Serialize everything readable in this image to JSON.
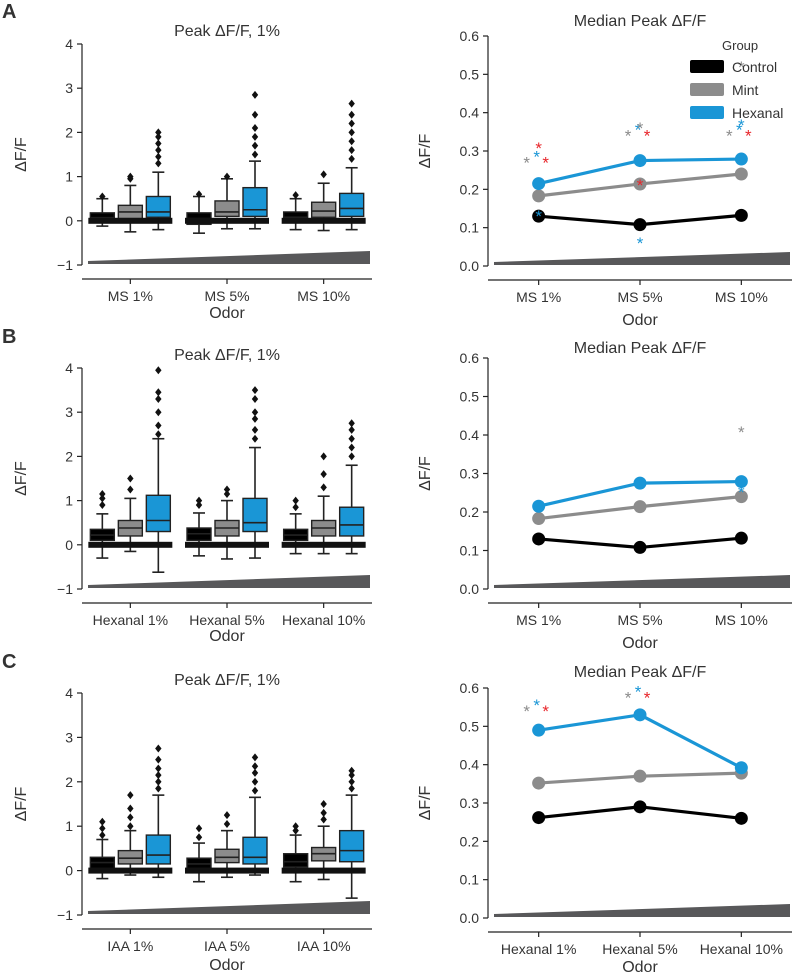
{
  "colors": {
    "control": "#000000",
    "mint": "#8c8c8c",
    "hexanal": "#1a96d6",
    "sig_red": "#e8262b",
    "ramp": "#58585a",
    "axis": "#222222"
  },
  "legend": {
    "title": "Group",
    "entries": [
      "Control",
      "Mint",
      "Hexanal"
    ]
  },
  "panels": [
    {
      "label": "A",
      "box_title": "Peak ΔF/F, 1%",
      "box_ylabel": "ΔF/F",
      "box_xlabel": "Odor",
      "line_title": "Median Peak ΔF/F",
      "line_ylabel": "ΔF/F",
      "line_xlabel": "Odor"
    },
    {
      "label": "B",
      "box_title": "Peak ΔF/F, 1%",
      "box_ylabel": "ΔF/F",
      "box_xlabel": "Odor",
      "line_title": "Median Peak ΔF/F",
      "line_ylabel": "ΔF/F",
      "line_xlabel": "Odor"
    },
    {
      "label": "C",
      "box_title": "Peak ΔF/F, 1%",
      "box_ylabel": "ΔF/F",
      "box_xlabel": "Odor",
      "line_title": "Median Peak ΔF/F",
      "line_ylabel": "ΔF/F",
      "line_xlabel": "Odor"
    }
  ],
  "chart_data": [
    {
      "id": "A-box",
      "type": "box",
      "title": "Peak ΔF/F, 1%",
      "xlabel": "Odor",
      "ylabel": "ΔF/F",
      "ylim": [
        -1,
        4
      ],
      "yticks": [
        -1,
        0,
        1,
        2,
        3,
        4
      ],
      "categories": [
        "MS 1%",
        "MS 5%",
        "MS 10%"
      ],
      "series": [
        {
          "name": "Control",
          "boxes": [
            {
              "q1": 0.02,
              "median": 0.07,
              "q3": 0.18,
              "wlo": -0.12,
              "whi": 0.5,
              "outliers": [
                0.55
              ]
            },
            {
              "q1": -0.08,
              "median": 0.05,
              "q3": 0.18,
              "wlo": -0.28,
              "whi": 0.55,
              "outliers": [
                0.6
              ]
            },
            {
              "q1": 0.0,
              "median": 0.08,
              "q3": 0.2,
              "wlo": -0.2,
              "whi": 0.5,
              "outliers": [
                0.58
              ]
            }
          ]
        },
        {
          "name": "Mint",
          "boxes": [
            {
              "q1": 0.05,
              "median": 0.2,
              "q3": 0.35,
              "wlo": -0.25,
              "whi": 0.8,
              "outliers": [
                1.0,
                0.95
              ]
            },
            {
              "q1": 0.1,
              "median": 0.2,
              "q3": 0.45,
              "wlo": -0.18,
              "whi": 0.95,
              "outliers": [
                1.0
              ]
            },
            {
              "q1": 0.08,
              "median": 0.22,
              "q3": 0.42,
              "wlo": -0.22,
              "whi": 0.85,
              "outliers": [
                1.05
              ]
            }
          ]
        },
        {
          "name": "Hexanal",
          "boxes": [
            {
              "q1": 0.08,
              "median": 0.2,
              "q3": 0.55,
              "wlo": -0.2,
              "whi": 1.1,
              "outliers": [
                1.3,
                1.45,
                1.6,
                1.75,
                1.9,
                2.0
              ]
            },
            {
              "q1": 0.1,
              "median": 0.25,
              "q3": 0.75,
              "wlo": -0.18,
              "whi": 1.35,
              "outliers": [
                1.5,
                1.7,
                1.9,
                2.1,
                2.4,
                2.85
              ]
            },
            {
              "q1": 0.1,
              "median": 0.28,
              "q3": 0.62,
              "wlo": -0.2,
              "whi": 1.2,
              "outliers": [
                1.4,
                1.6,
                1.8,
                2.0,
                2.2,
                2.4,
                2.65
              ]
            }
          ]
        }
      ]
    },
    {
      "id": "A-line",
      "type": "line",
      "title": "Median Peak ΔF/F",
      "xlabel": "Odor",
      "ylabel": "ΔF/F",
      "ylim": [
        0,
        0.6
      ],
      "yticks": [
        0.0,
        0.1,
        0.2,
        0.3,
        0.4,
        0.5,
        0.6
      ],
      "categories": [
        "MS 1%",
        "MS 5%",
        "MS 10%"
      ],
      "series": [
        {
          "name": "Control",
          "values": [
            0.13,
            0.108,
            0.132
          ]
        },
        {
          "name": "Mint",
          "values": [
            0.183,
            0.214,
            0.24
          ]
        },
        {
          "name": "Hexanal",
          "values": [
            0.215,
            0.275,
            0.279
          ]
        }
      ],
      "significance": [
        {
          "x": 0,
          "y": 0.27,
          "marks": [
            [
              "Mint",
              -12,
              6
            ],
            [
              "Hexanal",
              -2,
              0
            ],
            [
              "red",
              7,
              6
            ]
          ]
        },
        {
          "x": 1,
          "y": 0.34,
          "marks": [
            [
              "Mint",
              -12,
              6
            ],
            [
              "Hexanal",
              -2,
              0
            ],
            [
              "red",
              7,
              6
            ]
          ]
        },
        {
          "x": 2,
          "y": 0.34,
          "marks": [
            [
              "Mint",
              -12,
              6
            ],
            [
              "Hexanal",
              -2,
              0
            ],
            [
              "red",
              7,
              6
            ]
          ]
        }
      ]
    },
    {
      "id": "B-box",
      "type": "box",
      "title": "Peak ΔF/F, 1%",
      "xlabel": "Odor",
      "ylabel": "ΔF/F",
      "ylim": [
        -1,
        4
      ],
      "yticks": [
        -1,
        0,
        1,
        2,
        3,
        4
      ],
      "categories": [
        "Hexanal 1%",
        "Hexanal 5%",
        "Hexanal 10%"
      ],
      "series": [
        {
          "name": "Control",
          "boxes": [
            {
              "q1": 0.1,
              "median": 0.22,
              "q3": 0.35,
              "wlo": -0.3,
              "whi": 0.7,
              "outliers": [
                0.9,
                1.05,
                1.15
              ]
            },
            {
              "q1": 0.1,
              "median": 0.25,
              "q3": 0.38,
              "wlo": -0.25,
              "whi": 0.72,
              "outliers": [
                0.9,
                1.0
              ]
            },
            {
              "q1": 0.1,
              "median": 0.22,
              "q3": 0.35,
              "wlo": -0.2,
              "whi": 0.7,
              "outliers": [
                0.85,
                1.0
              ]
            }
          ]
        },
        {
          "name": "Mint",
          "boxes": [
            {
              "q1": 0.2,
              "median": 0.38,
              "q3": 0.55,
              "wlo": -0.15,
              "whi": 1.05,
              "outliers": [
                1.25,
                1.5
              ]
            },
            {
              "q1": 0.2,
              "median": 0.38,
              "q3": 0.55,
              "wlo": -0.32,
              "whi": 1.0,
              "outliers": [
                1.15,
                1.25
              ]
            },
            {
              "q1": 0.2,
              "median": 0.38,
              "q3": 0.55,
              "wlo": -0.2,
              "whi": 1.1,
              "outliers": [
                1.3,
                1.6,
                2.0
              ]
            }
          ]
        },
        {
          "name": "Hexanal",
          "boxes": [
            {
              "q1": 0.3,
              "median": 0.55,
              "q3": 1.12,
              "wlo": -0.62,
              "whi": 2.4,
              "outliers": [
                2.5,
                2.7,
                3.0,
                3.3,
                3.45,
                3.95
              ]
            },
            {
              "q1": 0.3,
              "median": 0.5,
              "q3": 1.05,
              "wlo": -0.3,
              "whi": 2.2,
              "outliers": [
                2.4,
                2.6,
                2.85,
                3.0,
                3.3,
                3.5
              ]
            },
            {
              "q1": 0.2,
              "median": 0.45,
              "q3": 0.85,
              "wlo": -0.2,
              "whi": 1.8,
              "outliers": [
                2.0,
                2.2,
                2.4,
                2.6,
                2.75
              ]
            }
          ]
        }
      ]
    },
    {
      "id": "B-line",
      "type": "line",
      "title": "Median Peak ΔF/F",
      "xlabel": "Odor",
      "ylabel": "ΔF/F",
      "ylim": [
        0,
        0.6
      ],
      "yticks": [
        0.0,
        0.1,
        0.2,
        0.3,
        0.4,
        0.5,
        0.6
      ],
      "categories": [
        "MS 1%",
        "MS 5%",
        "MS 10%"
      ],
      "series": [
        {
          "name": "Control",
          "values": [
            0.13,
            0.108,
            0.132
          ]
        },
        {
          "name": "Mint",
          "values": [
            0.183,
            0.214,
            0.24
          ]
        },
        {
          "name": "Hexanal",
          "values": [
            0.215,
            0.275,
            0.279
          ]
        }
      ],
      "significance": [
        {
          "x": 0,
          "y": 0.0,
          "marks": [
            [
              "red",
              0,
              -435
            ],
            [
              "Hexanal",
              0,
              -367
            ]
          ]
        },
        {
          "x": 1,
          "y": 0.0,
          "marks": [
            [
              "Mint",
              0,
              -455
            ],
            [
              "red",
              0,
              -398
            ],
            [
              "Hexanal",
              0,
              -340
            ]
          ]
        },
        {
          "x": 2,
          "y": 0.0,
          "marks": [
            [
              "Mint",
              0,
              -516
            ],
            [
              "Hexanal",
              0,
              -458
            ]
          ]
        }
      ]
    },
    {
      "id": "C-box",
      "type": "box",
      "title": "Peak ΔF/F, 1%",
      "xlabel": "Odor",
      "ylabel": "ΔF/F",
      "ylim": [
        -1,
        4
      ],
      "yticks": [
        -1,
        0,
        1,
        2,
        3,
        4
      ],
      "categories": [
        "IAA 1%",
        "IAA 5%",
        "IAA 10%"
      ],
      "series": [
        {
          "name": "Control",
          "boxes": [
            {
              "q1": 0.05,
              "median": 0.18,
              "q3": 0.3,
              "wlo": -0.18,
              "whi": 0.7,
              "outliers": [
                0.8,
                0.95,
                1.1
              ]
            },
            {
              "q1": 0.05,
              "median": 0.15,
              "q3": 0.28,
              "wlo": -0.25,
              "whi": 0.62,
              "outliers": [
                0.75,
                0.95
              ]
            },
            {
              "q1": 0.08,
              "median": 0.2,
              "q3": 0.38,
              "wlo": -0.25,
              "whi": 0.8,
              "outliers": [
                0.9,
                1.0
              ]
            }
          ]
        },
        {
          "name": "Mint",
          "boxes": [
            {
              "q1": 0.15,
              "median": 0.28,
              "q3": 0.45,
              "wlo": -0.1,
              "whi": 0.9,
              "outliers": [
                1.0,
                1.2,
                1.4,
                1.7
              ]
            },
            {
              "q1": 0.18,
              "median": 0.3,
              "q3": 0.48,
              "wlo": -0.15,
              "whi": 0.9,
              "outliers": [
                1.05,
                1.25
              ]
            },
            {
              "q1": 0.22,
              "median": 0.38,
              "q3": 0.52,
              "wlo": -0.2,
              "whi": 1.0,
              "outliers": [
                1.15,
                1.3,
                1.5
              ]
            }
          ]
        },
        {
          "name": "Hexanal",
          "boxes": [
            {
              "q1": 0.15,
              "median": 0.35,
              "q3": 0.8,
              "wlo": -0.15,
              "whi": 1.7,
              "outliers": [
                1.85,
                2.0,
                2.15,
                2.3,
                2.5,
                2.75
              ]
            },
            {
              "q1": 0.15,
              "median": 0.3,
              "q3": 0.75,
              "wlo": -0.1,
              "whi": 1.65,
              "outliers": [
                1.8,
                2.0,
                2.2,
                2.35,
                2.55
              ]
            },
            {
              "q1": 0.2,
              "median": 0.45,
              "q3": 0.9,
              "wlo": -0.62,
              "whi": 1.7,
              "outliers": [
                1.85,
                2.0,
                2.15,
                2.25
              ]
            }
          ]
        }
      ]
    },
    {
      "id": "C-line",
      "type": "line",
      "title": "Median Peak ΔF/F",
      "xlabel": "Odor",
      "ylabel": "ΔF/F",
      "ylim": [
        0,
        0.6
      ],
      "yticks": [
        0.0,
        0.1,
        0.2,
        0.3,
        0.4,
        0.5,
        0.6
      ],
      "categories": [
        "Hexanal 1%",
        "Hexanal 5%",
        "Hexanal 10%"
      ],
      "series": [
        {
          "name": "Control",
          "values": [
            0.262,
            0.29,
            0.26
          ]
        },
        {
          "name": "Mint",
          "values": [
            0.352,
            0.37,
            0.378
          ]
        },
        {
          "name": "Hexanal",
          "values": [
            0.49,
            0.53,
            0.392
          ]
        }
      ],
      "significance": [
        {
          "x": 0,
          "y": 0.54,
          "marks": [
            [
              "Mint",
              -12,
              6
            ],
            [
              "Hexanal",
              -2,
              0
            ],
            [
              "red",
              7,
              6
            ]
          ]
        },
        {
          "x": 1,
          "y": 0.575,
          "marks": [
            [
              "Mint",
              -12,
              6
            ],
            [
              "Hexanal",
              -2,
              0
            ],
            [
              "red",
              7,
              6
            ]
          ]
        },
        {
          "x": 2,
          "y": 0.0,
          "marks": [
            [
              "Mint",
              0,
              -480
            ],
            [
              "Hexanal",
              0,
              -420
            ]
          ]
        }
      ]
    }
  ]
}
